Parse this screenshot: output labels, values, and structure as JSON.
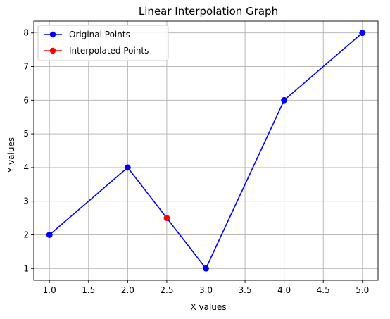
{
  "chart_data": {
    "type": "line",
    "title": "Linear Interpolation Graph",
    "xlabel": "X values",
    "ylabel": "Y values",
    "xlim": [
      0.8,
      5.2
    ],
    "ylim": [
      0.65,
      8.35
    ],
    "xticks": [
      1.0,
      1.5,
      2.0,
      2.5,
      3.0,
      3.5,
      4.0,
      4.5,
      5.0
    ],
    "xtick_labels": [
      "1.0",
      "1.5",
      "2.0",
      "2.5",
      "3.0",
      "3.5",
      "4.0",
      "4.5",
      "5.0"
    ],
    "yticks": [
      1,
      2,
      3,
      4,
      5,
      6,
      7,
      8
    ],
    "ytick_labels": [
      "1",
      "2",
      "3",
      "4",
      "5",
      "6",
      "7",
      "8"
    ],
    "grid": true,
    "legend_position": "top-left",
    "series": [
      {
        "name": "Original Points",
        "color": "#0000ff",
        "x": [
          1,
          2,
          3,
          4,
          5
        ],
        "y": [
          2,
          4,
          1,
          6,
          8
        ],
        "line": true,
        "marker": "circle"
      },
      {
        "name": "Interpolated Points",
        "color": "#ff0000",
        "x": [
          2.5
        ],
        "y": [
          2.5
        ],
        "line": true,
        "marker": "circle"
      }
    ]
  }
}
